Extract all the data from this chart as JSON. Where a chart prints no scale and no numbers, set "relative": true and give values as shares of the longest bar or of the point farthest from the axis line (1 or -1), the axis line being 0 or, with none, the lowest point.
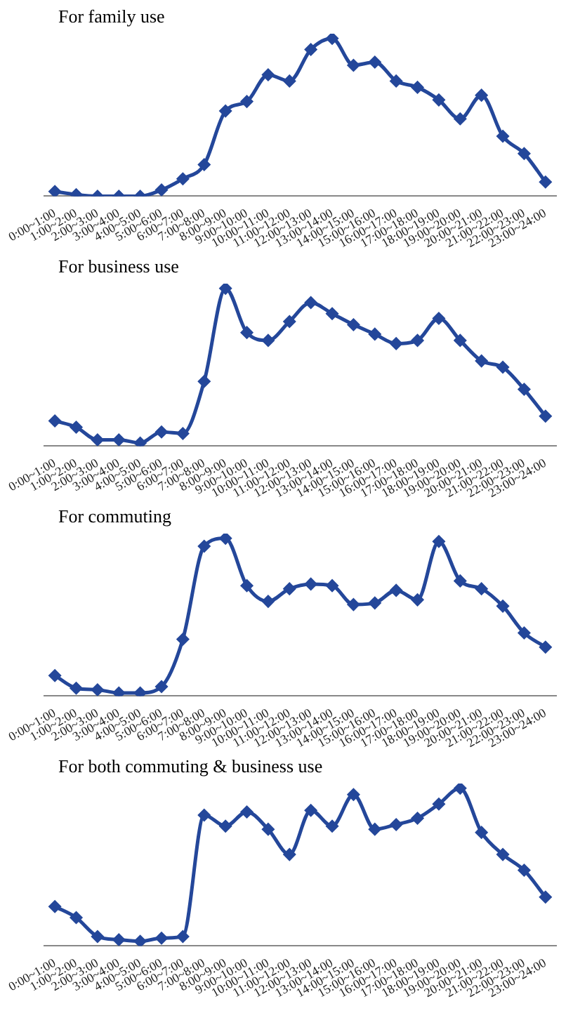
{
  "chart_data": [
    {
      "type": "line",
      "title": "For family use",
      "relative": true,
      "marker": "diamond",
      "line_style": "solid",
      "grid": false,
      "legend": false,
      "categories": [
        "0:00~1:00",
        "1:00~2:00",
        "2:00~3:00",
        "3:00~4:00",
        "4:00~5:00",
        "5:00~6:00",
        "6:00~7:00",
        "7:00~8:00",
        "8:00~9:00",
        "9:00~10:00",
        "10:00~11:00",
        "11:00~12:00",
        "12:00~13:00",
        "13:00~14:00",
        "14:00~15:00",
        "15:00~16:00",
        "16:00~17:00",
        "17:00~18:00",
        "18:00~19:00",
        "19:00~20:00",
        "20:00~21:00",
        "21:00~22:00",
        "22:00~23:00",
        "23:00~24:00"
      ],
      "series": [
        {
          "color": "#24479a",
          "values": [
            0.03,
            0.01,
            0,
            0,
            0,
            0.04,
            0.11,
            0.2,
            0.54,
            0.6,
            0.77,
            0.73,
            0.93,
            1,
            0.83,
            0.85,
            0.73,
            0.69,
            0.61,
            0.49,
            0.64,
            0.38,
            0.27,
            0.09
          ]
        }
      ]
    },
    {
      "type": "line",
      "title": "For business use",
      "relative": true,
      "marker": "diamond",
      "line_style": "solid",
      "grid": false,
      "legend": false,
      "categories": [
        "0:00~1:00",
        "1:00~2:00",
        "2:00~3:00",
        "3:00~4:00",
        "4:00~5:00",
        "5:00~6:00",
        "6:00~7:00",
        "7:00~8:00",
        "8:00~9:00",
        "9:00~10:00",
        "10:00~11:00",
        "11:00~12:00",
        "12:00~13:00",
        "13:00~14:00",
        "14:00~15:00",
        "15:00~16:00",
        "16:00~17:00",
        "17:00~18:00",
        "18:00~19:00",
        "19:00~20:00",
        "20:00~21:00",
        "21:00~22:00",
        "22:00~23:00",
        "23:00~24:00"
      ],
      "series": [
        {
          "color": "#24479a",
          "values": [
            0.16,
            0.12,
            0.04,
            0.04,
            0.02,
            0.09,
            0.08,
            0.41,
            1,
            0.72,
            0.67,
            0.79,
            0.91,
            0.84,
            0.77,
            0.71,
            0.65,
            0.67,
            0.81,
            0.67,
            0.54,
            0.5,
            0.36,
            0.19
          ]
        }
      ]
    },
    {
      "type": "line",
      "title": "For commuting",
      "relative": true,
      "marker": "diamond",
      "line_style": "solid",
      "grid": false,
      "legend": false,
      "categories": [
        "0:00~1:00",
        "1:00~2:00",
        "2:00~3:00",
        "3:00~4:00",
        "4:00~5:00",
        "5:00~6:00",
        "6:00~7:00",
        "7:00~8:00",
        "8:00~9:00",
        "9:00~10:00",
        "10:00~11:00",
        "11:00~12:00",
        "12:00~13:00",
        "13:00~14:00",
        "14:00~15:00",
        "15:00~16:00",
        "16:00~17:00",
        "17:00~18:00",
        "18:00~19:00",
        "19:00~20:00",
        "20:00~21:00",
        "21:00~22:00",
        "22:00~23:00",
        "23:00~24:00"
      ],
      "series": [
        {
          "color": "#24479a",
          "values": [
            0.13,
            0.05,
            0.04,
            0.02,
            0.02,
            0.06,
            0.36,
            0.95,
            1,
            0.7,
            0.6,
            0.68,
            0.71,
            0.7,
            0.58,
            0.59,
            0.67,
            0.61,
            0.98,
            0.73,
            0.68,
            0.57,
            0.4,
            0.31
          ]
        }
      ]
    },
    {
      "type": "line",
      "title": "For both commuting & business use",
      "relative": true,
      "marker": "diamond",
      "line_style": "solid",
      "grid": false,
      "legend": false,
      "categories": [
        "0:00~1:00",
        "1:00~2:00",
        "2:00~3:00",
        "3:00~4:00",
        "4:00~5:00",
        "5:00~6:00",
        "6:00~7:00",
        "7:00~8:00",
        "8:00~9:00",
        "9:00~10:00",
        "10:00~11:00",
        "11:00~12:00",
        "12:00~13:00",
        "13:00~14:00",
        "14:00~15:00",
        "15:00~16:00",
        "16:00~17:00",
        "17:00~18:00",
        "18:00~19:00",
        "19:00~20:00",
        "20:00~21:00",
        "21:00~22:00",
        "22:00~23:00",
        "23:00~24:00"
      ],
      "series": [
        {
          "color": "#24479a",
          "values": [
            0.25,
            0.18,
            0.06,
            0.04,
            0.03,
            0.05,
            0.06,
            0.83,
            0.76,
            0.85,
            0.74,
            0.58,
            0.86,
            0.76,
            0.96,
            0.74,
            0.77,
            0.81,
            0.9,
            1,
            0.72,
            0.58,
            0.48,
            0.31
          ]
        }
      ]
    }
  ]
}
